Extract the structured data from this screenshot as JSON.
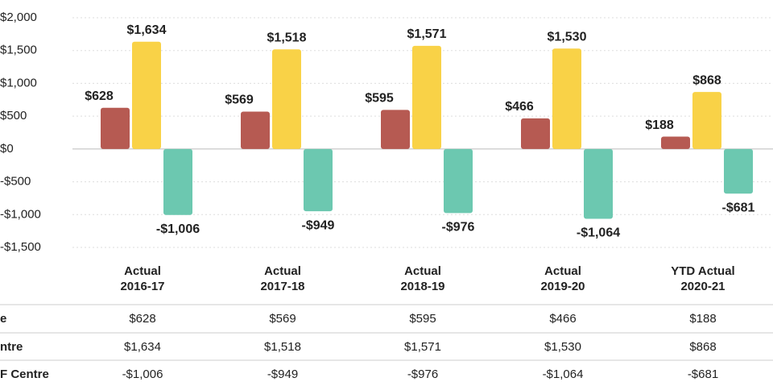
{
  "chart_data": {
    "type": "bar",
    "categories": [
      [
        "Actual",
        "2016-17"
      ],
      [
        "Actual",
        "2017-18"
      ],
      [
        "Actual",
        "2018-19"
      ],
      [
        "Actual",
        "2019-20"
      ],
      [
        "YTD Actual",
        "2020-21"
      ]
    ],
    "series": [
      {
        "name": "e",
        "color": "#b65a52",
        "values": [
          628,
          569,
          595,
          466,
          188
        ],
        "value_labels": [
          "$628",
          "$569",
          "$595",
          "$466",
          "$188"
        ]
      },
      {
        "name": "ntre",
        "color": "#f9d247",
        "values": [
          1634,
          1518,
          1571,
          1530,
          868
        ],
        "value_labels": [
          "$1,634",
          "$1,518",
          "$1,571",
          "$1,530",
          "$868"
        ]
      },
      {
        "name": "F Centre",
        "color": "#6cc8b0",
        "values": [
          -1006,
          -949,
          -976,
          -1064,
          -681
        ],
        "value_labels": [
          "-$1,006",
          "-$949",
          "-$976",
          "-$1,064",
          "-$681"
        ]
      }
    ],
    "ylim": [
      -1500,
      2000
    ],
    "yticks": [
      {
        "value": -1500,
        "label": "-$1,500"
      },
      {
        "value": -1000,
        "label": "-$1,000"
      },
      {
        "value": -500,
        "label": "-$500"
      },
      {
        "value": 0,
        "label": "$0"
      },
      {
        "value": 500,
        "label": "$500"
      },
      {
        "value": 1000,
        "label": "$1,000"
      },
      {
        "value": 1500,
        "label": "$1,500"
      },
      {
        "value": 2000,
        "label": "$2,000"
      }
    ],
    "grid": true
  }
}
